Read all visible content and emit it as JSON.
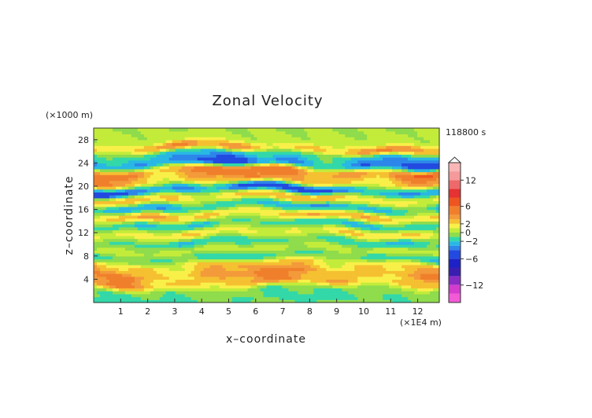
{
  "chart_data": {
    "type": "heatmap",
    "title": "Zonal Velocity",
    "xlabel": "x–coordinate",
    "ylabel": "z–coordinate",
    "x_unit_label": "(×1E4 m)",
    "y_unit_label": "(×1000 m)",
    "time_label": "118800 s",
    "xlim": [
      0,
      12.8
    ],
    "ylim": [
      0,
      30
    ],
    "x_ticks": [
      "1",
      "2",
      "3",
      "4",
      "5",
      "6",
      "7",
      "8",
      "9",
      "10",
      "11",
      "12"
    ],
    "y_ticks": [
      "4",
      "8",
      "12",
      "16",
      "20",
      "24",
      "28"
    ],
    "colorbar": {
      "tick_labels": [
        "12",
        "6",
        "2",
        "0",
        "−2",
        "−6",
        "−12"
      ],
      "tick_values": [
        12,
        6,
        2,
        0,
        -2,
        -6,
        -12
      ],
      "levels": [
        {
          "min": 14,
          "max": 16,
          "color": "#f9b6b6"
        },
        {
          "min": 12,
          "max": 14,
          "color": "#f59a9a"
        },
        {
          "min": 10,
          "max": 12,
          "color": "#ee6a6a"
        },
        {
          "min": 8,
          "max": 10,
          "color": "#e53232"
        },
        {
          "min": 6,
          "max": 8,
          "color": "#ee5520"
        },
        {
          "min": 4,
          "max": 6,
          "color": "#f07f2c"
        },
        {
          "min": 3,
          "max": 4,
          "color": "#f39a3a"
        },
        {
          "min": 2,
          "max": 3,
          "color": "#f5c031"
        },
        {
          "min": 1,
          "max": 2,
          "color": "#f8f049"
        },
        {
          "min": 0,
          "max": 1,
          "color": "#c3ec3a"
        },
        {
          "min": -1,
          "max": 0,
          "color": "#8fdc4c"
        },
        {
          "min": -2,
          "max": -1,
          "color": "#33d8a8"
        },
        {
          "min": -3,
          "max": -2,
          "color": "#29b8e4"
        },
        {
          "min": -4,
          "max": -3,
          "color": "#2d86ea"
        },
        {
          "min": -6,
          "max": -4,
          "color": "#234ae0"
        },
        {
          "min": -8,
          "max": -6,
          "color": "#1c22c6"
        },
        {
          "min": -10,
          "max": -8,
          "color": "#3a1eb0"
        },
        {
          "min": -12,
          "max": -10,
          "color": "#8a2cc4"
        },
        {
          "min": -14,
          "max": -12,
          "color": "#d33ccd"
        },
        {
          "min": -16,
          "max": -14,
          "color": "#f25ad6"
        }
      ]
    },
    "bands": [
      {
        "z": 28.5,
        "amp": 0.4
      },
      {
        "z": 26.5,
        "amp": 4.2
      },
      {
        "z": 25.5,
        "amp": -3.0
      },
      {
        "z": 24.0,
        "amp": -4.5
      },
      {
        "z": 22.5,
        "amp": 5.5
      },
      {
        "z": 21.0,
        "amp": 3.5
      },
      {
        "z": 19.5,
        "amp": -5.0
      },
      {
        "z": 18.0,
        "amp": 3.0
      },
      {
        "z": 16.5,
        "amp": -3.0
      },
      {
        "z": 15.0,
        "amp": 3.0
      },
      {
        "z": 13.5,
        "amp": -2.2
      },
      {
        "z": 12.0,
        "amp": 2.0
      },
      {
        "z": 10.5,
        "amp": -2.0
      },
      {
        "z": 9.0,
        "amp": 1.0
      },
      {
        "z": 8.0,
        "amp": -2.0
      },
      {
        "z": 6.5,
        "amp": 2.8
      },
      {
        "z": 5.0,
        "amp": 4.2
      },
      {
        "z": 3.5,
        "amp": 3.5
      },
      {
        "z": 2.0,
        "amp": -1.0
      },
      {
        "z": 0.5,
        "amp": -1.5
      }
    ],
    "grid": false,
    "legend": "right colorbar"
  }
}
